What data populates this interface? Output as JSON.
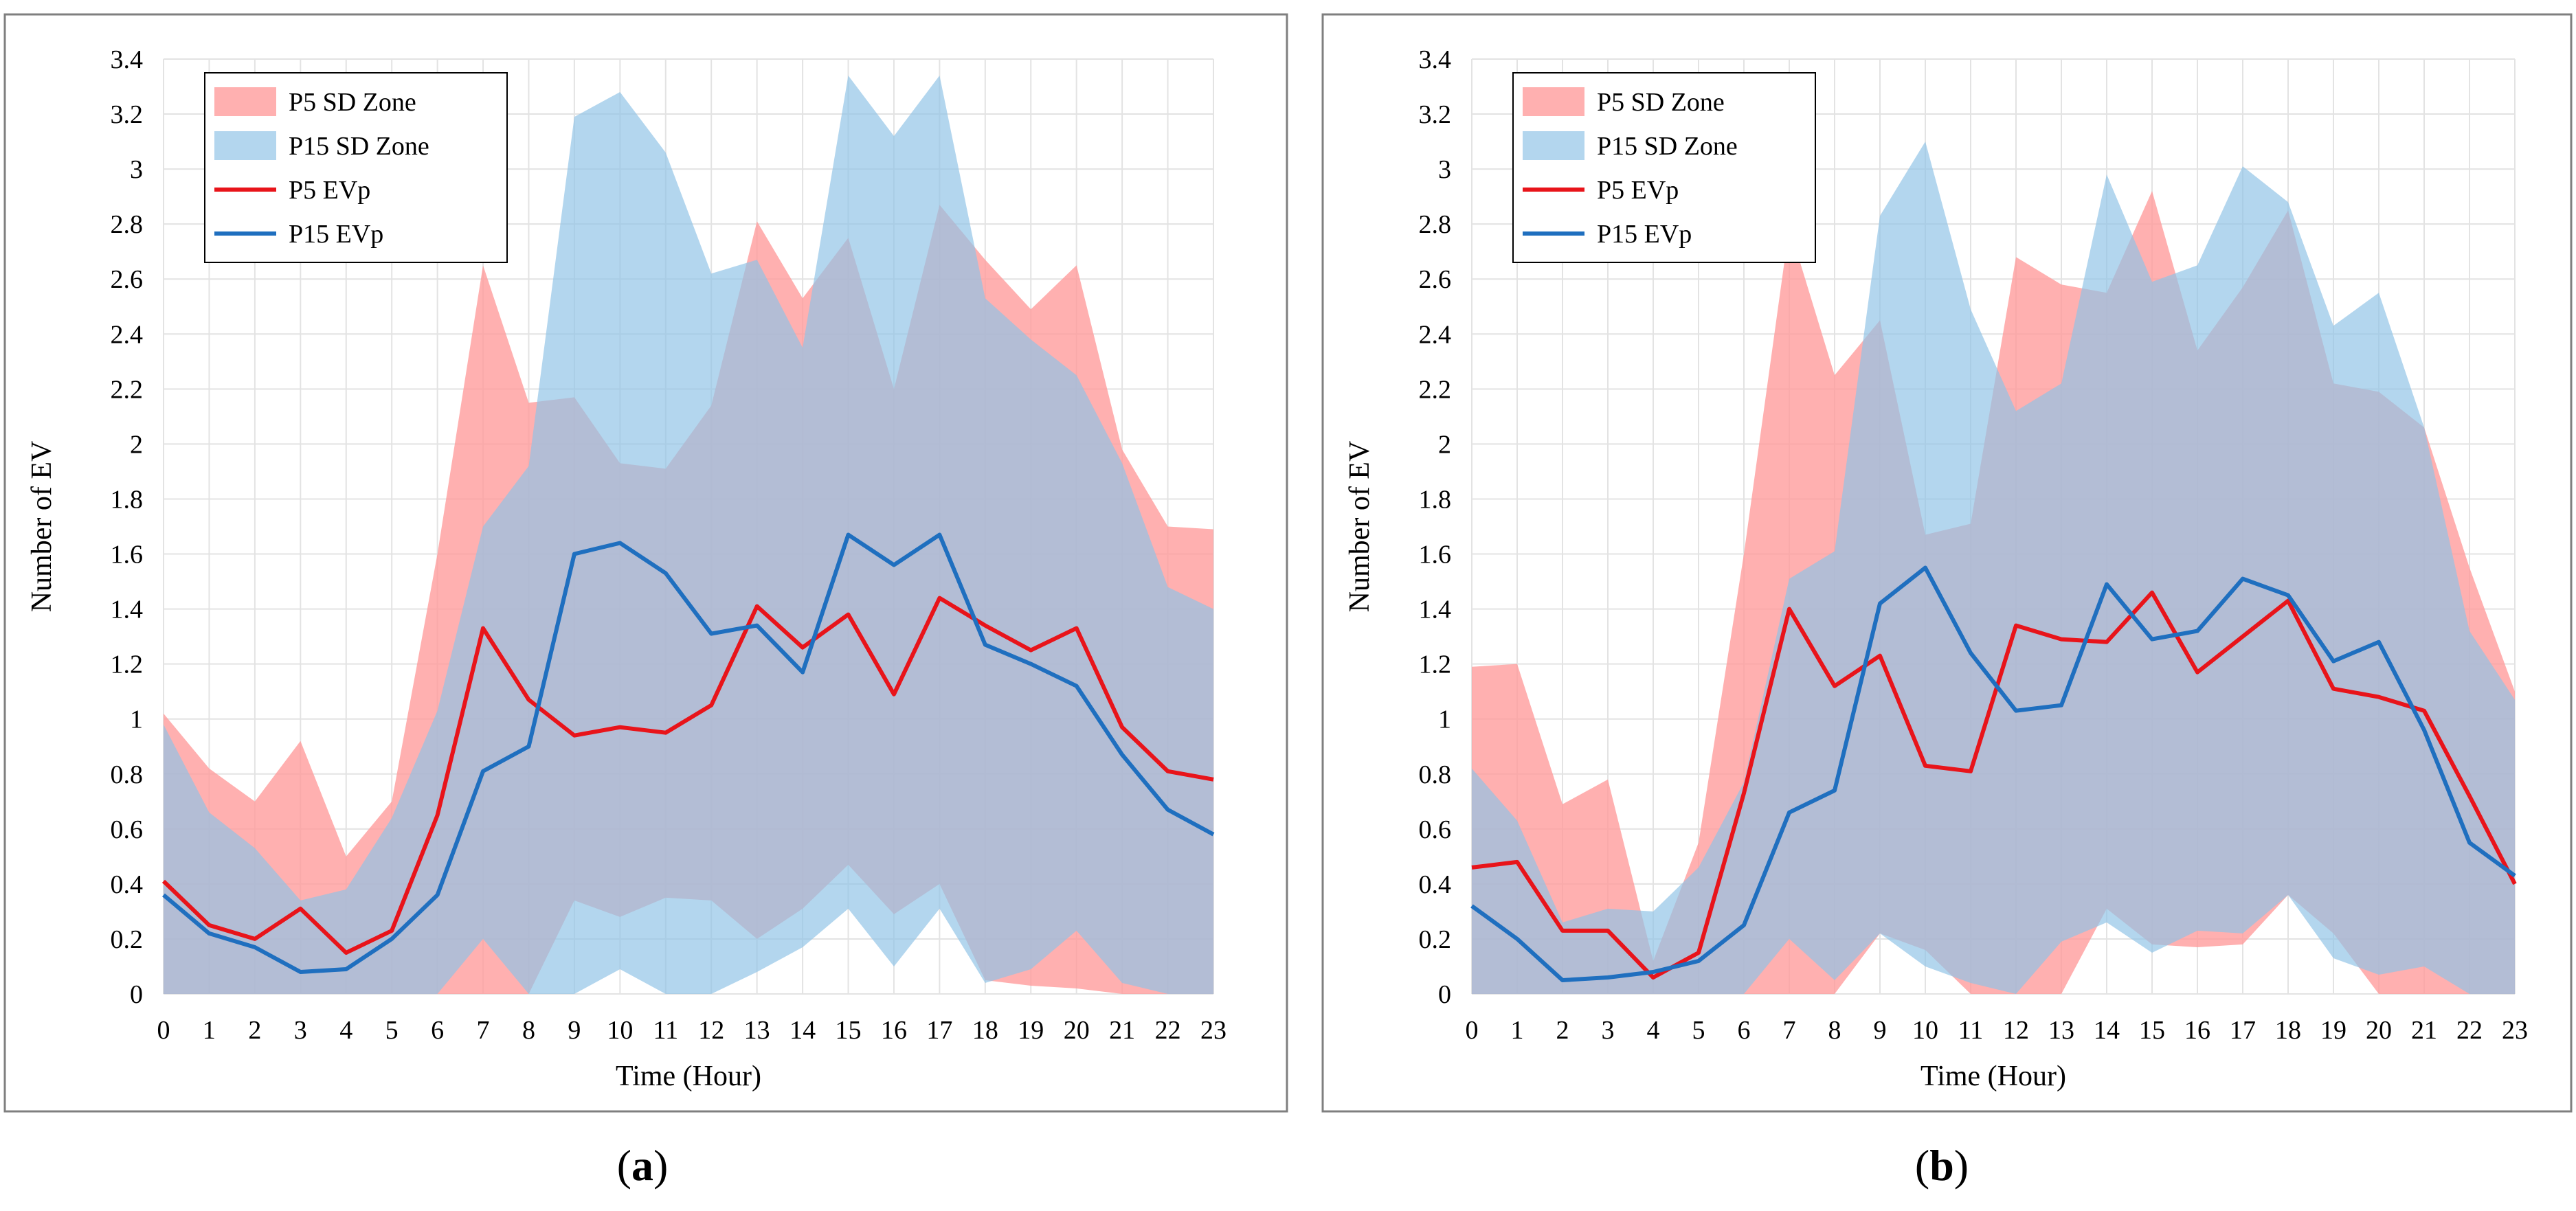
{
  "colors": {
    "p5_zone": "#ff9a9a",
    "p15_zone": "#8fc3e6",
    "p5_line": "#e8141a",
    "p15_line": "#1f6fbf",
    "grid": "#e3e3e3",
    "frame": "#7f7f7f"
  },
  "chart_data": [
    {
      "type": "area",
      "panel_label": "(a)",
      "panel_letter": "a",
      "title": "",
      "xlabel": "Time (Hour)",
      "ylabel": "Number of EV",
      "x": [
        0,
        1,
        2,
        3,
        4,
        5,
        6,
        7,
        8,
        9,
        10,
        11,
        12,
        13,
        14,
        15,
        16,
        17,
        18,
        19,
        20,
        21,
        22,
        23
      ],
      "xticks": [
        "0",
        "1",
        "2",
        "3",
        "4",
        "5",
        "6",
        "7",
        "8",
        "9",
        "10",
        "11",
        "12",
        "13",
        "14",
        "15",
        "16",
        "17",
        "18",
        "19",
        "20",
        "21",
        "22",
        "23"
      ],
      "ylim": [
        0,
        3.4
      ],
      "yticks": [
        "0",
        "0.2",
        "0.4",
        "0.6",
        "0.8",
        "1",
        "1.2",
        "1.4",
        "1.6",
        "1.8",
        "2",
        "2.2",
        "2.4",
        "2.6",
        "2.8",
        "3",
        "3.2",
        "3.4"
      ],
      "grid": true,
      "legend_position": "top-left",
      "legend": [
        "P5 SD Zone",
        "P15 SD Zone",
        "P5 EVp",
        "P15 EVp"
      ],
      "bands": [
        {
          "name": "P5 SD Zone",
          "lower": [
            0,
            0,
            0,
            0,
            0,
            0,
            0,
            0,
            0,
            0.34,
            0.28,
            0.35,
            0.34,
            0.2,
            0.31,
            0.47,
            0.29,
            0.4,
            0.05,
            0.03,
            0.02,
            0,
            0,
            0
          ],
          "upper": [
            1.02,
            0.82,
            0.7,
            0.92,
            0.5,
            0.7,
            1.6,
            2.65,
            2.15,
            2.17,
            1.93,
            1.91,
            2.14,
            2.81,
            2.53,
            2.75,
            2.2,
            2.87,
            2.67,
            2.49,
            2.65,
            1.98,
            1.7,
            1.69
          ]
        },
        {
          "name": "P15 SD Zone",
          "lower": [
            0,
            0,
            0,
            0,
            0,
            0,
            0,
            0.2,
            0,
            0,
            0.09,
            0,
            0,
            0.08,
            0.17,
            0.31,
            0.1,
            0.31,
            0.04,
            0.09,
            0.23,
            0.04,
            0,
            0
          ],
          "upper": [
            0.98,
            0.66,
            0.53,
            0.34,
            0.38,
            0.64,
            1.03,
            1.7,
            1.92,
            3.19,
            3.28,
            3.06,
            2.62,
            2.67,
            2.35,
            3.34,
            3.12,
            3.34,
            2.53,
            2.38,
            2.25,
            1.93,
            1.48,
            1.4
          ]
        }
      ],
      "series": [
        {
          "name": "P5 EVp",
          "values": [
            0.41,
            0.25,
            0.2,
            0.31,
            0.15,
            0.23,
            0.65,
            1.33,
            1.07,
            0.94,
            0.97,
            0.95,
            1.05,
            1.41,
            1.26,
            1.38,
            1.09,
            1.44,
            1.34,
            1.25,
            1.33,
            0.97,
            0.81,
            0.78
          ]
        },
        {
          "name": "P15 EVp",
          "values": [
            0.36,
            0.22,
            0.17,
            0.08,
            0.09,
            0.2,
            0.36,
            0.81,
            0.9,
            1.6,
            1.64,
            1.53,
            1.31,
            1.34,
            1.17,
            1.67,
            1.56,
            1.67,
            1.27,
            1.2,
            1.12,
            0.87,
            0.67,
            0.58
          ]
        }
      ]
    },
    {
      "type": "area",
      "panel_label": "(b)",
      "panel_letter": "b",
      "title": "",
      "xlabel": "Time (Hour)",
      "ylabel": "Number of EV",
      "x": [
        0,
        1,
        2,
        3,
        4,
        5,
        6,
        7,
        8,
        9,
        10,
        11,
        12,
        13,
        14,
        15,
        16,
        17,
        18,
        19,
        20,
        21,
        22,
        23
      ],
      "xticks": [
        "0",
        "1",
        "2",
        "3",
        "4",
        "5",
        "6",
        "7",
        "8",
        "9",
        "10",
        "11",
        "12",
        "13",
        "14",
        "15",
        "16",
        "17",
        "18",
        "19",
        "20",
        "21",
        "22",
        "23"
      ],
      "ylim": [
        0,
        3.4
      ],
      "yticks": [
        "0",
        "0.2",
        "0.4",
        "0.6",
        "0.8",
        "1",
        "1.2",
        "1.4",
        "1.6",
        "1.8",
        "2",
        "2.2",
        "2.4",
        "2.6",
        "2.8",
        "3",
        "3.2",
        "3.4"
      ],
      "grid": true,
      "legend_position": "top-left",
      "legend": [
        "P5 SD Zone",
        "P15 SD Zone",
        "P5 EVp",
        "P15 EVp"
      ],
      "bands": [
        {
          "name": "P5 SD Zone",
          "lower": [
            0,
            0,
            0,
            0,
            0,
            0,
            0,
            0,
            0,
            0.22,
            0.16,
            0,
            0,
            0,
            0.31,
            0.18,
            0.17,
            0.18,
            0.36,
            0.22,
            0,
            0,
            0,
            0
          ],
          "upper": [
            1.19,
            1.2,
            0.69,
            0.78,
            0.12,
            0.55,
            1.6,
            2.79,
            2.25,
            2.45,
            1.67,
            1.71,
            2.68,
            2.58,
            2.55,
            2.92,
            2.34,
            2.57,
            2.85,
            2.22,
            2.19,
            2.06,
            1.55,
            1.1
          ]
        },
        {
          "name": "P15 SD Zone",
          "lower": [
            0,
            0,
            0,
            0,
            0,
            0,
            0,
            0.2,
            0.05,
            0.22,
            0.1,
            0.04,
            0,
            0.19,
            0.26,
            0.15,
            0.23,
            0.22,
            0.36,
            0.13,
            0.07,
            0.1,
            0,
            0
          ],
          "upper": [
            0.82,
            0.63,
            0.26,
            0.31,
            0.3,
            0.46,
            0.77,
            1.51,
            1.61,
            2.83,
            3.1,
            2.49,
            2.12,
            2.22,
            2.98,
            2.59,
            2.65,
            3.01,
            2.88,
            2.43,
            2.55,
            2.06,
            1.32,
            1.07
          ]
        }
      ],
      "series": [
        {
          "name": "P5 EVp",
          "values": [
            0.46,
            0.48,
            0.23,
            0.23,
            0.06,
            0.15,
            0.73,
            1.4,
            1.12,
            1.23,
            0.83,
            0.81,
            1.34,
            1.29,
            1.28,
            1.46,
            1.17,
            1.3,
            1.43,
            1.11,
            1.08,
            1.03,
            0.72,
            0.4
          ]
        },
        {
          "name": "P15 EVp",
          "values": [
            0.32,
            0.2,
            0.05,
            0.06,
            0.08,
            0.12,
            0.25,
            0.66,
            0.74,
            1.42,
            1.55,
            1.24,
            1.03,
            1.05,
            1.49,
            1.29,
            1.32,
            1.51,
            1.45,
            1.21,
            1.28,
            0.96,
            0.55,
            0.43
          ]
        }
      ]
    }
  ]
}
